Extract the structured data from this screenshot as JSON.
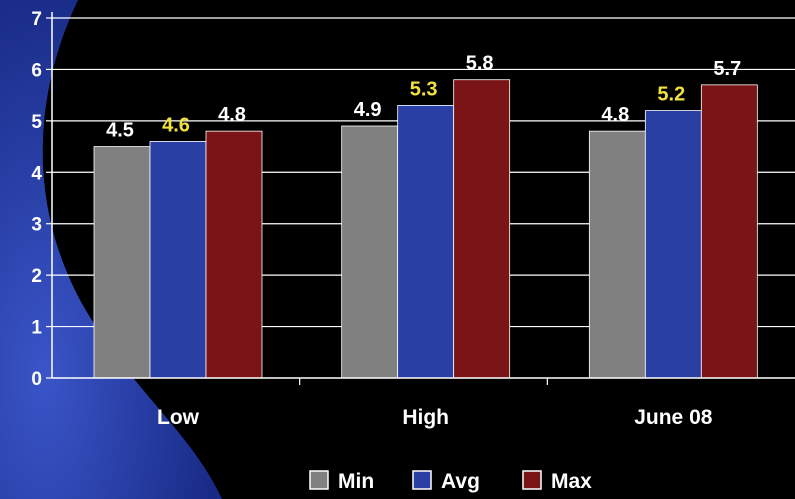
{
  "chart_data": {
    "type": "bar",
    "categories": [
      "Low",
      "High",
      "June 08"
    ],
    "series": [
      {
        "name": "Min",
        "values": [
          4.5,
          4.9,
          4.8
        ],
        "color": "#808080",
        "label_color": "#ffffff"
      },
      {
        "name": "Avg",
        "values": [
          4.6,
          5.3,
          5.2
        ],
        "color": "#2a3fa3",
        "label_color": "#f0e040"
      },
      {
        "name": "Max",
        "values": [
          4.8,
          5.8,
          5.7
        ],
        "color": "#7a1416",
        "label_color": "#ffffff"
      }
    ],
    "data_labels": [
      [
        "4.5",
        "4.9",
        "4.8"
      ],
      [
        "4.6",
        "5.3",
        "5.2"
      ],
      [
        "4.8",
        "5.8",
        "5.7"
      ]
    ],
    "yticks": [
      "0",
      "1",
      "2",
      "3",
      "4",
      "5",
      "6",
      "7"
    ],
    "ylim": [
      0,
      7
    ],
    "grid": true,
    "legend_position": "bottom",
    "colors": {
      "background": "#000000",
      "accent_shape": "#1d2f8f",
      "gridline": "#ffffff",
      "text": "#ffffff"
    }
  }
}
